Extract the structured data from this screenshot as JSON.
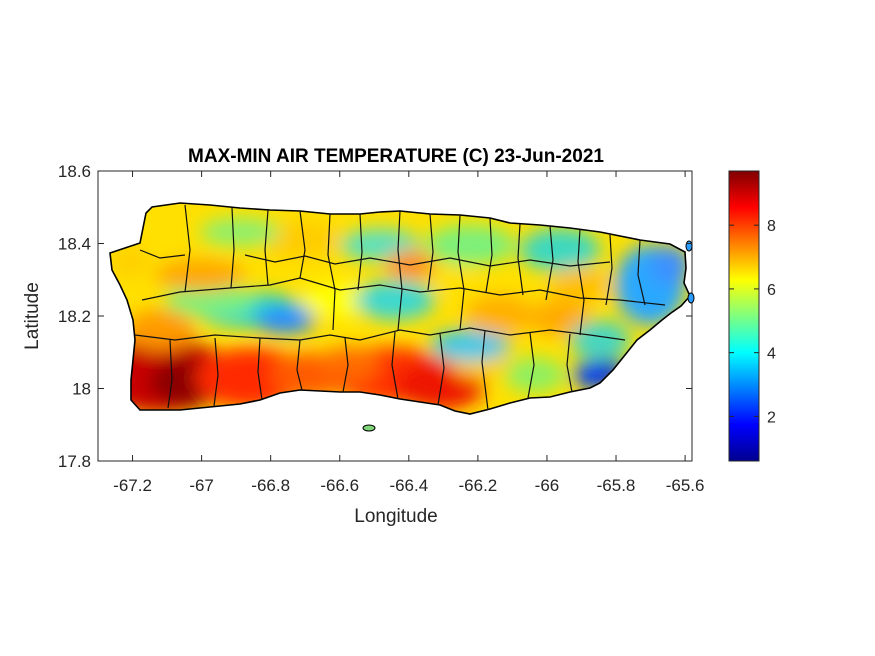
{
  "chart_data": {
    "type": "heatmap",
    "title": "MAX-MIN AIR TEMPERATURE (C) 23-Jun-2021",
    "xlabel": "Longitude",
    "ylabel": "Latitude",
    "xlim": [
      -67.3,
      -65.58
    ],
    "ylim": [
      17.8,
      18.6
    ],
    "xticks": [
      -67.2,
      -67,
      -66.8,
      -66.6,
      -66.4,
      -66.2,
      -66,
      -65.8,
      -65.6
    ],
    "xtick_labels": [
      "-67.2",
      "-67",
      "-66.8",
      "-66.6",
      "-66.4",
      "-66.2",
      "-66",
      "-65.8",
      "-65.6"
    ],
    "yticks": [
      17.8,
      18,
      18.2,
      18.4,
      18.6
    ],
    "ytick_labels": [
      "17.8",
      "18",
      "18.2",
      "18.4",
      "18.6"
    ],
    "colorbar": {
      "range": [
        0.6,
        9.7
      ],
      "ticks": [
        2,
        4,
        6,
        8
      ],
      "tick_labels": [
        "2",
        "4",
        "6",
        "8"
      ],
      "colormap": "jet"
    },
    "grid": false,
    "boundary_color": "#000000"
  }
}
